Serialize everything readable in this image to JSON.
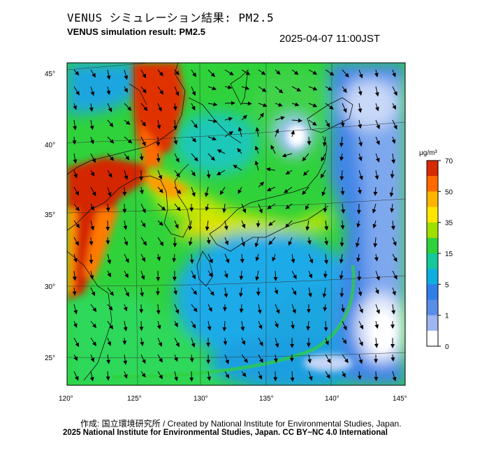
{
  "title_ja": "VENUS シミュレーション結果: PM2.5",
  "title_en": "VENUS simulation result: PM2.5",
  "timestamp": "2025-04-07 11:00JST",
  "map": {
    "lat_labels": [
      "45°",
      "40°",
      "35°",
      "30°",
      "25°"
    ],
    "lon_labels": [
      "120°",
      "125°",
      "130°",
      "135°",
      "140°",
      "145°"
    ]
  },
  "colorbar": {
    "unit": "μg/m³",
    "ticks": [
      "70",
      "50",
      "35",
      "15",
      "5",
      "1",
      "0"
    ],
    "colors": [
      "#d62a00",
      "#ff6a00",
      "#ffb400",
      "#ffe600",
      "#9fe000",
      "#2fd23a",
      "#14c89a",
      "#10aee0",
      "#2f7fe6",
      "#5a8de8",
      "#9fb5f0",
      "#ffffff"
    ]
  },
  "credit_line1": "作成: 国立環境研究所 / Created by National Institute for Environmental Studies, Japan.",
  "credit_line2": "2025 National Institute for Environmental Studies, Japan. CC BY−NC 4.0 International"
}
